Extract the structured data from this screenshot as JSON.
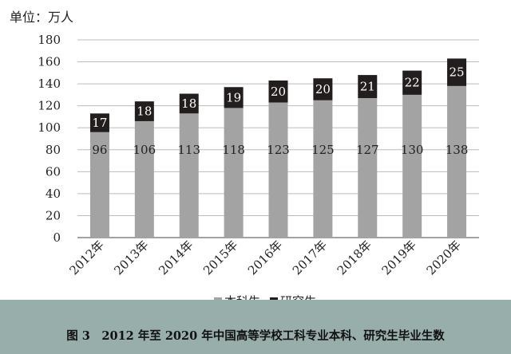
{
  "unit_label": "单位：万人",
  "caption": "图 3　2012 年至 2020 年中国高等学校工科专业本科、研究生毕业生数",
  "colors": {
    "undergrad": "#a3a3a3",
    "graduate": "#231e1e",
    "grid": "#bbbbbb",
    "axis": "#444444",
    "caption_band": "#98aeab"
  },
  "chart_data": {
    "type": "bar",
    "stacked": true,
    "title": "",
    "xlabel": "",
    "ylabel": "单位：万人",
    "categories": [
      "2012年",
      "2013年",
      "2014年",
      "2015年",
      "2016年",
      "2017年",
      "2018年",
      "2019年",
      "2020年"
    ],
    "series": [
      {
        "name": "本科生",
        "values": [
          96,
          106,
          113,
          118,
          123,
          125,
          127,
          130,
          138
        ]
      },
      {
        "name": "研究生",
        "values": [
          17,
          18,
          18,
          19,
          20,
          20,
          21,
          22,
          25
        ]
      }
    ],
    "ylim": [
      0,
      180
    ],
    "yticks": [
      0,
      20,
      40,
      60,
      80,
      100,
      120,
      140,
      160,
      180
    ],
    "grid": true,
    "legend_position": "bottom"
  }
}
